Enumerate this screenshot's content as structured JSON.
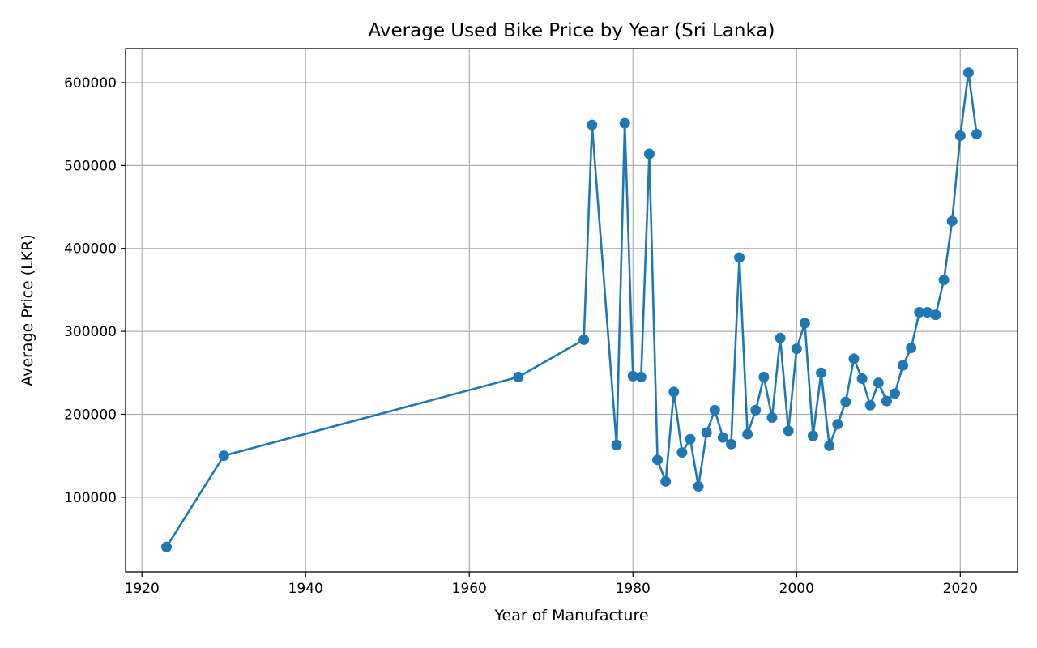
{
  "chart_data": {
    "type": "line",
    "title": "Average Used Bike Price by Year (Sri Lanka)",
    "xlabel": "Year of Manufacture",
    "ylabel": "Average Price (LKR)",
    "xlim": [
      1918,
      2027
    ],
    "ylim": [
      10000,
      641000
    ],
    "x_ticks": [
      1920,
      1940,
      1960,
      1980,
      2000,
      2020
    ],
    "x_tick_labels": [
      "1920",
      "1940",
      "1960",
      "1980",
      "2000",
      "2020"
    ],
    "y_ticks": [
      100000,
      200000,
      300000,
      400000,
      500000,
      600000
    ],
    "y_tick_labels": [
      "100000",
      "200000",
      "300000",
      "400000",
      "500000",
      "600000"
    ],
    "grid": true,
    "legend": false,
    "colors": {
      "series": "#1f77b4",
      "grid": "#b0b0b0"
    },
    "series": [
      {
        "marker": "circle",
        "x": [
          1923,
          1930,
          1966,
          1974,
          1975,
          1978,
          1979,
          1980,
          1981,
          1982,
          1983,
          1984,
          1985,
          1986,
          1987,
          1988,
          1989,
          1990,
          1991,
          1992,
          1993,
          1994,
          1995,
          1996,
          1997,
          1998,
          1999,
          2000,
          2001,
          2002,
          2003,
          2004,
          2005,
          2006,
          2007,
          2008,
          2009,
          2010,
          2011,
          2012,
          2013,
          2014,
          2015,
          2016,
          2017,
          2018,
          2019,
          2020,
          2021,
          2022
        ],
        "values": [
          40000,
          150000,
          245000,
          290000,
          549000,
          163000,
          551000,
          246000,
          245000,
          514000,
          145000,
          119000,
          227000,
          154000,
          170000,
          113000,
          178000,
          205000,
          172000,
          164000,
          389000,
          176000,
          205000,
          245000,
          196000,
          292000,
          180000,
          279000,
          310000,
          174000,
          250000,
          162000,
          188000,
          215000,
          267000,
          243000,
          211000,
          238000,
          216000,
          225000,
          259000,
          280000,
          323000,
          323000,
          320000,
          362000,
          433000,
          536000,
          612000,
          538000
        ]
      }
    ]
  }
}
